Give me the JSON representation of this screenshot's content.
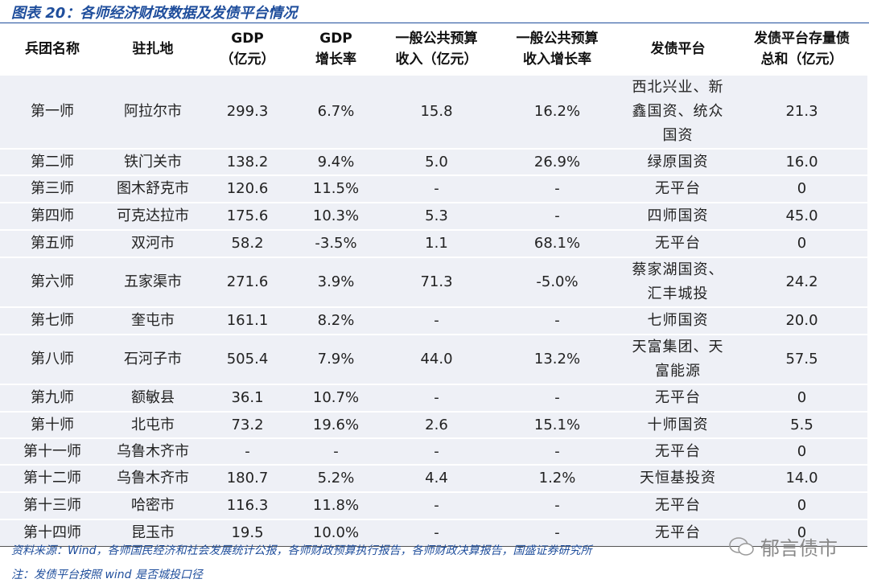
{
  "header": {
    "title": "图表 20：各师经济财政数据及发债平台情况"
  },
  "table": {
    "columns": [
      [
        "兵团名称"
      ],
      [
        "驻扎地"
      ],
      [
        "GDP",
        "（亿元）"
      ],
      [
        "GDP",
        "增长率"
      ],
      [
        "一般公共预算",
        "收入（亿元）"
      ],
      [
        "一般公共预算",
        "收入增长率"
      ],
      [
        "发债平台"
      ],
      [
        "发债平台存量债",
        "总和（亿元）"
      ]
    ],
    "rows": [
      [
        "第一师",
        "阿拉尔市",
        "299.3",
        "6.7%",
        "15.8",
        "16.2%",
        "西北兴业、新鑫国资、统众国资",
        "21.3"
      ],
      [
        "第二师",
        "铁门关市",
        "138.2",
        "9.4%",
        "5.0",
        "26.9%",
        "绿原国资",
        "16.0"
      ],
      [
        "第三师",
        "图木舒克市",
        "120.6",
        "11.5%",
        "-",
        "-",
        "无平台",
        "0"
      ],
      [
        "第四师",
        "可克达拉市",
        "175.6",
        "10.3%",
        "5.3",
        "-",
        "四师国资",
        "45.0"
      ],
      [
        "第五师",
        "双河市",
        "58.2",
        "-3.5%",
        "1.1",
        "68.1%",
        "无平台",
        "0"
      ],
      [
        "第六师",
        "五家渠市",
        "271.6",
        "3.9%",
        "71.3",
        "-5.0%",
        "蔡家湖国资、汇丰城投",
        "24.2"
      ],
      [
        "第七师",
        "奎屯市",
        "161.1",
        "8.2%",
        "-",
        "-",
        "七师国资",
        "20.0"
      ],
      [
        "第八师",
        "石河子市",
        "505.4",
        "7.9%",
        "44.0",
        "13.2%",
        "天富集团、天富能源",
        "57.5"
      ],
      [
        "第九师",
        "额敏县",
        "36.1",
        "10.7%",
        "-",
        "-",
        "无平台",
        "0"
      ],
      [
        "第十师",
        "北屯市",
        "73.2",
        "19.6%",
        "2.6",
        "15.1%",
        "十师国资",
        "5.5"
      ],
      [
        "第十一师",
        "乌鲁木齐市",
        "-",
        "-",
        "-",
        "-",
        "无平台",
        "0"
      ],
      [
        "第十二师",
        "乌鲁木齐市",
        "180.7",
        "5.2%",
        "4.4",
        "1.2%",
        "天恒基投资",
        "14.0"
      ],
      [
        "第十三师",
        "哈密市",
        "116.3",
        "11.8%",
        "-",
        "-",
        "无平台",
        "0"
      ],
      [
        "第十四师",
        "昆玉市",
        "19.5",
        "10.0%",
        "-",
        "-",
        "无平台",
        "0"
      ]
    ]
  },
  "footer": {
    "source": "资料来源：Wind，各师国民经济和社会发展统计公报，各师财政预算执行报告，各师财政决算报告，国盛证券研究所",
    "note": "注：发债平台按照 wind 是否城投口径",
    "watermark": "郁言债市"
  }
}
